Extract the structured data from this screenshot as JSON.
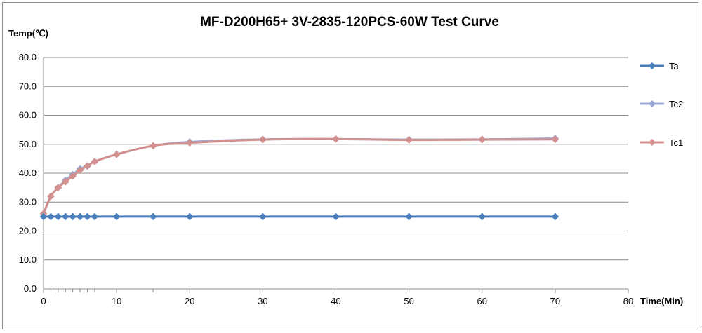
{
  "chart_data": {
    "type": "line",
    "title": "MF-D200H65+  3V-2835-120PCS-60W Test Curve",
    "ylabel": "Temp(℃)",
    "xlabel": "Time(Min)",
    "xlim": [
      0,
      80
    ],
    "ylim": [
      0,
      80
    ],
    "x_ticks": [
      0,
      10,
      20,
      30,
      40,
      50,
      60,
      70,
      80
    ],
    "y_ticks": [
      "0.0",
      "10.0",
      "20.0",
      "30.0",
      "40.0",
      "50.0",
      "60.0",
      "70.0",
      "80.0"
    ],
    "grid": "horizontal",
    "legend_position": "right",
    "x": [
      0,
      1,
      2,
      3,
      4,
      5,
      6,
      7,
      10,
      15,
      20,
      30,
      40,
      50,
      60,
      70
    ],
    "series": [
      {
        "name": "Ta",
        "color": "#4a7ebb",
        "values": [
          25,
          25,
          25,
          25,
          25,
          25,
          25,
          25,
          25,
          25,
          25,
          25,
          25,
          25,
          25,
          25
        ]
      },
      {
        "name": "Tc2",
        "color": "#9aa9d4",
        "values": [
          26,
          32,
          35,
          37.5,
          39.5,
          41.5,
          42.5,
          44,
          46.5,
          49.5,
          50.8,
          51.7,
          51.8,
          51.6,
          51.7,
          52.0
        ]
      },
      {
        "name": "Tc1",
        "color": "#d4908e",
        "values": [
          26,
          32,
          35,
          37,
          39,
          41,
          42.5,
          44,
          46.5,
          49.5,
          50.5,
          51.6,
          51.8,
          51.5,
          51.6,
          51.7
        ]
      }
    ]
  }
}
